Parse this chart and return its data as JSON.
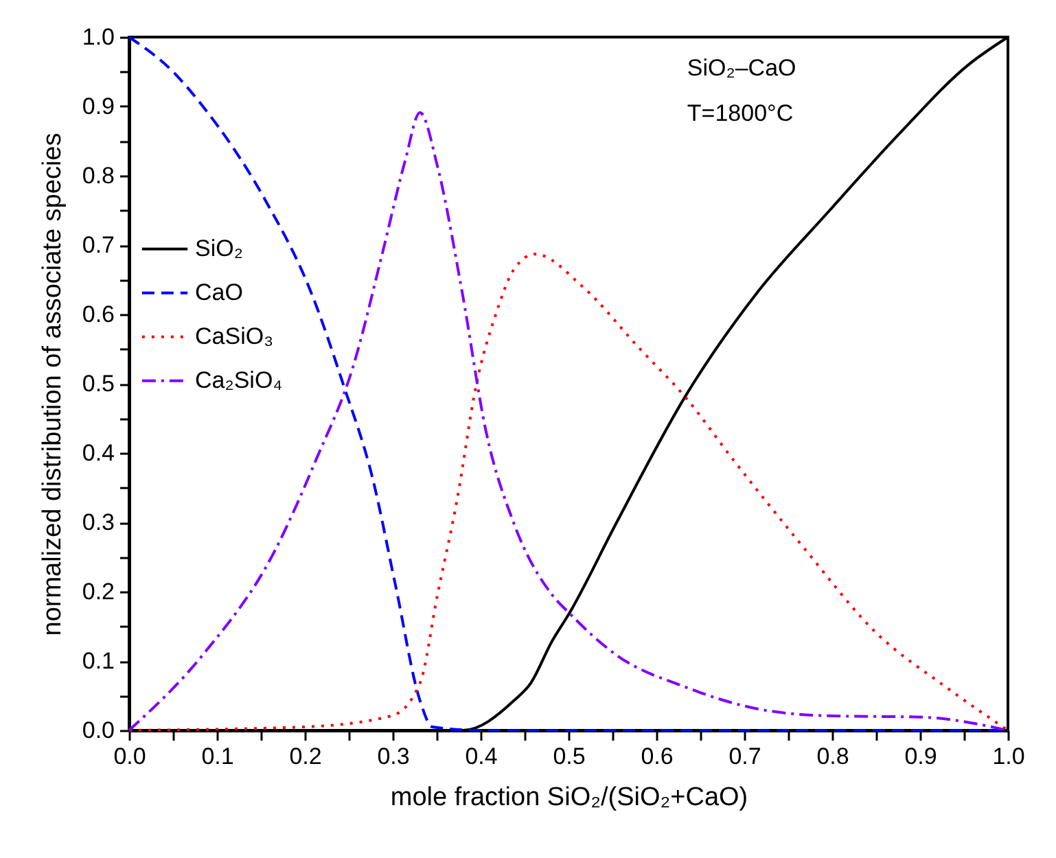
{
  "chart_data": {
    "type": "line",
    "xlabel": "mole fraction SiO₂/(SiO₂+CaO)",
    "ylabel": "normalized distribution of associate species",
    "annotations": [
      "SiO₂–CaO",
      "T=1800°C"
    ],
    "xlim": [
      0,
      1
    ],
    "ylim": [
      0,
      1
    ],
    "xticks": [
      {
        "value": 0,
        "label": "0.0"
      },
      {
        "value": 0.05,
        "label": null
      },
      0.1,
      {
        "value": 0.15,
        "label": null
      },
      0.2,
      {
        "value": 0.25,
        "label": null
      },
      0.3,
      {
        "value": 0.35,
        "label": null
      },
      0.4,
      {
        "value": 0.45,
        "label": null
      },
      0.5,
      {
        "value": 0.55,
        "label": null
      },
      0.6,
      {
        "value": 0.65,
        "label": null
      },
      0.7,
      {
        "value": 0.75,
        "label": null
      },
      0.8,
      {
        "value": 0.85,
        "label": null
      },
      0.9,
      {
        "value": 0.95,
        "label": null
      },
      {
        "value": 1,
        "label": "1.0"
      }
    ],
    "yticks": [
      {
        "value": 0,
        "label": "0.0"
      },
      {
        "value": 0.05,
        "label": null
      },
      0.1,
      {
        "value": 0.15,
        "label": null
      },
      0.2,
      {
        "value": 0.25,
        "label": null
      },
      0.3,
      {
        "value": 0.35,
        "label": null
      },
      0.4,
      {
        "value": 0.45,
        "label": null
      },
      0.5,
      {
        "value": 0.55,
        "label": null
      },
      0.6,
      {
        "value": 0.65,
        "label": null
      },
      0.7,
      {
        "value": 0.75,
        "label": null
      },
      0.8,
      {
        "value": 0.85,
        "label": null
      },
      0.9,
      {
        "value": 0.95,
        "label": null
      },
      {
        "value": 1,
        "label": "1.0"
      }
    ],
    "grid": false,
    "legend": "left",
    "marker": "none",
    "series": [
      {
        "name": "SiO₂",
        "color": "#000000",
        "line_style": "solid",
        "x": [
          0,
          0.2,
          0.38,
          0.438,
          0.457,
          0.481,
          0.501,
          0.554,
          0.634,
          0.715,
          0.795,
          0.876,
          0.956,
          1.0
        ],
        "values": [
          0,
          0,
          0,
          0.043,
          0.068,
          0.128,
          0.169,
          0.298,
          0.484,
          0.632,
          0.747,
          0.86,
          0.961,
          1.0
        ]
      },
      {
        "name": "CaO",
        "color": "#0000ff",
        "line_style": "dashed",
        "x": [
          0,
          0.05,
          0.084,
          0.154,
          0.207,
          0.244,
          0.277,
          0.303,
          0.331,
          0.345,
          0.4,
          1.0
        ],
        "values": [
          1.0,
          0.95,
          0.9,
          0.767,
          0.632,
          0.498,
          0.364,
          0.21,
          0.043,
          0.005,
          0,
          0
        ]
      },
      {
        "name": "CaSiO₃",
        "color": "#ff0000",
        "line_style": "dotted",
        "x": [
          0,
          0.2,
          0.299,
          0.331,
          0.351,
          0.373,
          0.395,
          0.417,
          0.438,
          0.462,
          0.516,
          0.58,
          0.634,
          0.687,
          0.768,
          0.849,
          0.93,
          1.0
        ],
        "values": [
          0,
          0.005,
          0.021,
          0.068,
          0.196,
          0.331,
          0.498,
          0.599,
          0.665,
          0.687,
          0.64,
          0.552,
          0.479,
          0.391,
          0.263,
          0.142,
          0.062,
          0
        ]
      },
      {
        "name": "Ca₂SiO₄",
        "color": "#8000ff",
        "line_style": "dashdot",
        "x": [
          0,
          0.084,
          0.165,
          0.213,
          0.255,
          0.288,
          0.314,
          0.331,
          0.351,
          0.379,
          0.406,
          0.438,
          0.481,
          0.501,
          0.554,
          0.634,
          0.715,
          0.795,
          0.902,
          1.0
        ],
        "values": [
          0,
          0.109,
          0.257,
          0.391,
          0.525,
          0.687,
          0.821,
          0.891,
          0.813,
          0.632,
          0.432,
          0.298,
          0.196,
          0.169,
          0.109,
          0.062,
          0.031,
          0.021,
          0.019,
          0
        ]
      }
    ]
  }
}
